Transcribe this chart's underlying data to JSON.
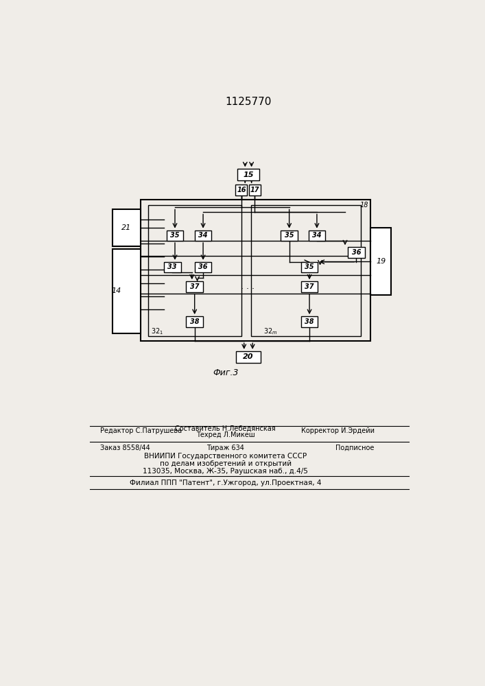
{
  "title": "1125770",
  "fig_caption": "Фиг.3",
  "page_color": "#f0ede8",
  "footer_editor": "Редактор С.Патрушева",
  "footer_comp": "Составитель Н.Лебедянская",
  "footer_tech": "Техред Л.Микеш",
  "footer_corr": "Корректор И.Эрдейи",
  "footer_order": "Заказ 8558/44",
  "footer_tirazh": "Тираж 634",
  "footer_podp": "Подписное",
  "footer_vniip": "ВНИИПИ Государственного комитета СССР",
  "footer_po": "по делам изобретений и открытий",
  "footer_addr": "113035, Москва, Ж-35, Раушская наб., д.4/5",
  "footer_filial": "Филиал ППП \"Патент\", г.Ужгород, ул.Проектная, 4"
}
